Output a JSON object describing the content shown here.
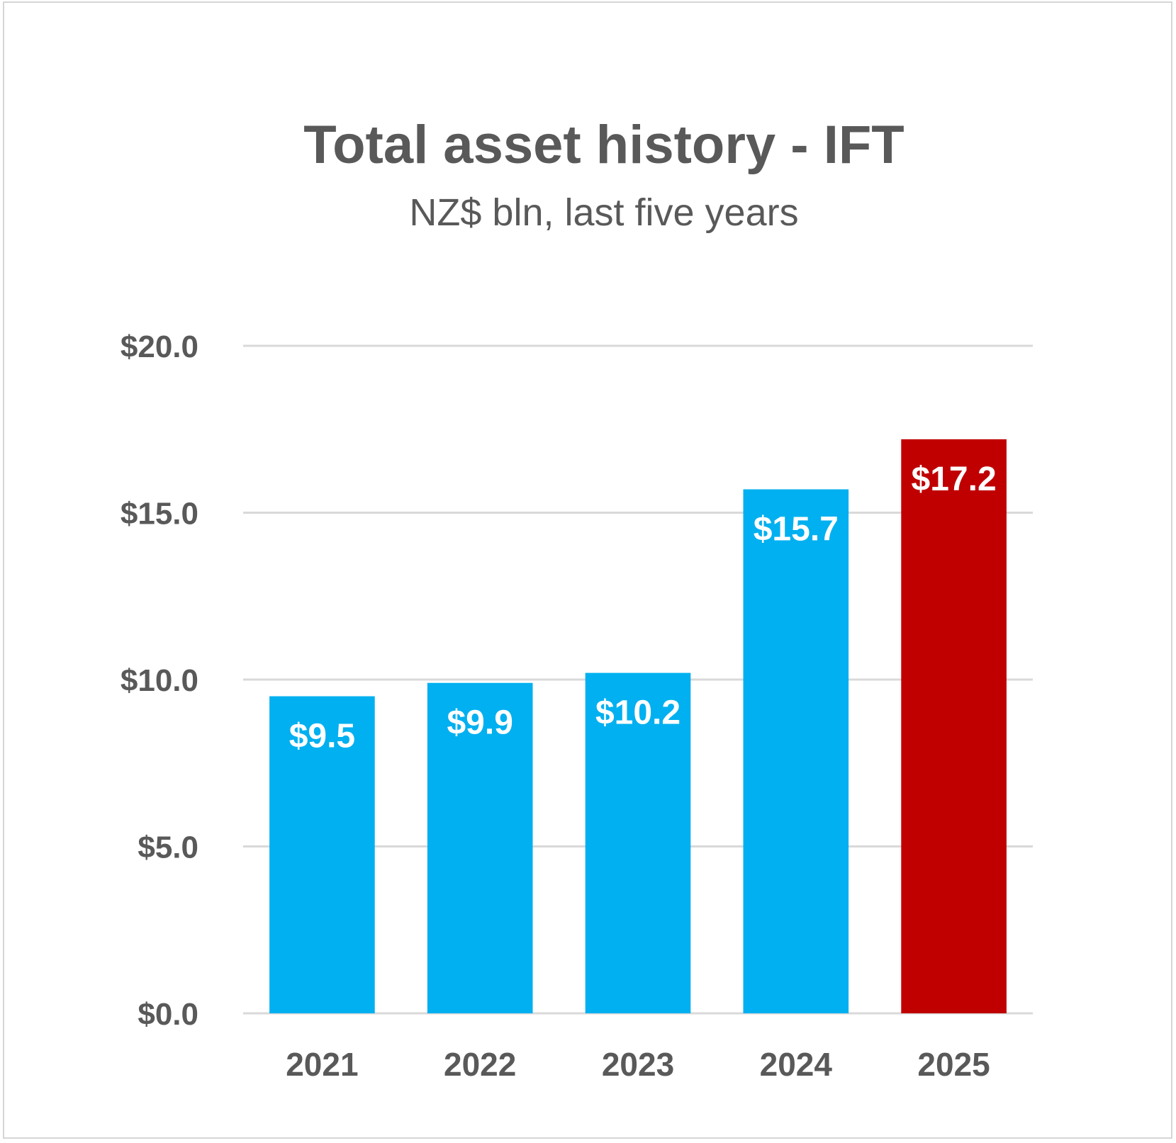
{
  "chart_data": {
    "type": "bar",
    "title": "Total asset history - IFT",
    "subtitle": "NZ$ bln, last five years",
    "xlabel": "",
    "ylabel": "",
    "categories": [
      "2021",
      "2022",
      "2023",
      "2024",
      "2025"
    ],
    "values": [
      9.5,
      9.9,
      10.2,
      15.7,
      17.2
    ],
    "data_labels": [
      "$9.5",
      "$9.9",
      "$10.2",
      "$15.7",
      "$17.2"
    ],
    "ylim": [
      0,
      20
    ],
    "yticks": [
      0,
      5,
      10,
      15,
      20
    ],
    "ytick_labels": [
      "$0.0",
      "$5.0",
      "$10.0",
      "$15.0",
      "$20.0"
    ],
    "grid": true,
    "legend": "none",
    "colors": {
      "default_bar": "#00B0F0",
      "highlight_bar": "#C00000",
      "text": "#595959",
      "gridline": "#D9D9D9"
    },
    "highlight_category": "2025"
  }
}
